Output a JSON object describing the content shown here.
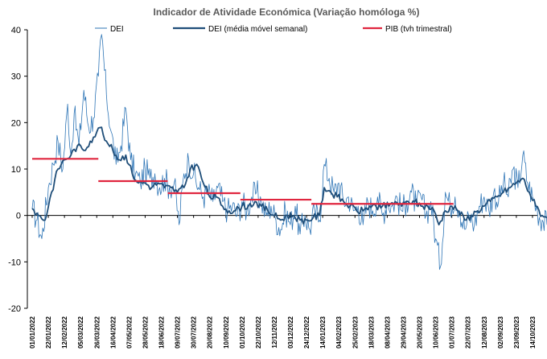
{
  "chart_data": {
    "type": "line",
    "title": "Indicador de Atividade Económica (Variação homóloga %)",
    "xlabel": "",
    "ylabel": "",
    "ylim": [
      -20,
      40
    ],
    "yticks": [
      -20,
      -10,
      0,
      10,
      20,
      30,
      40
    ],
    "grid": false,
    "legend_position": "top",
    "x_tick_labels": [
      "01/01/2022",
      "22/01/2022",
      "12/02/2022",
      "05/03/2022",
      "26/03/2022",
      "16/04/2022",
      "07/05/2022",
      "28/05/2022",
      "18/06/2022",
      "09/07/2022",
      "30/07/2022",
      "20/08/2022",
      "10/09/2022",
      "01/10/2022",
      "22/10/2022",
      "12/11/2022",
      "03/12/2022",
      "24/12/2022",
      "14/01/2023",
      "04/02/2023",
      "25/02/2023",
      "18/03/2023",
      "08/04/2023",
      "29/04/2023",
      "20/05/2023",
      "10/06/2023",
      "01/07/2023",
      "22/07/2023",
      "12/08/2023",
      "02/09/2023",
      "23/09/2023",
      "14/10/2023"
    ],
    "series": [
      {
        "name": "DEI",
        "style": "thin-line",
        "color": "#2E75B6",
        "anchors": [
          [
            0,
            1.5
          ],
          [
            0.3,
            -1
          ],
          [
            0.6,
            -5
          ],
          [
            1,
            6
          ],
          [
            1.3,
            11
          ],
          [
            1.6,
            16
          ],
          [
            1.9,
            10
          ],
          [
            2.2,
            24
          ],
          [
            2.4,
            13
          ],
          [
            2.6,
            22
          ],
          [
            2.9,
            15
          ],
          [
            3.2,
            27
          ],
          [
            3.5,
            19
          ],
          [
            3.8,
            21
          ],
          [
            4.1,
            30
          ],
          [
            4.3,
            39
          ],
          [
            4.6,
            26
          ],
          [
            4.9,
            18
          ],
          [
            5.2,
            11
          ],
          [
            5.5,
            15
          ],
          [
            5.8,
            23
          ],
          [
            6.1,
            12
          ],
          [
            6.4,
            9
          ],
          [
            6.7,
            7
          ],
          [
            7,
            10
          ],
          [
            7.3,
            8
          ],
          [
            7.6,
            9
          ],
          [
            7.9,
            6
          ],
          [
            8.2,
            8
          ],
          [
            8.5,
            6
          ],
          [
            8.8,
            7
          ],
          [
            9.1,
            -2
          ],
          [
            9.4,
            9
          ],
          [
            9.7,
            12
          ],
          [
            10,
            9
          ],
          [
            10.3,
            6
          ],
          [
            10.6,
            4
          ],
          [
            10.9,
            5
          ],
          [
            11.2,
            3
          ],
          [
            11.5,
            6
          ],
          [
            11.8,
            3
          ],
          [
            12.1,
            1
          ],
          [
            12.4,
            2
          ],
          [
            12.7,
            0
          ],
          [
            13,
            3
          ],
          [
            13.3,
            1
          ],
          [
            13.6,
            4
          ],
          [
            13.9,
            5
          ],
          [
            14.2,
            3
          ],
          [
            14.5,
            0
          ],
          [
            14.8,
            2
          ],
          [
            15.1,
            -1
          ],
          [
            15.4,
            -3
          ],
          [
            15.7,
            1
          ],
          [
            16,
            -2
          ],
          [
            16.3,
            2
          ],
          [
            16.6,
            -4
          ],
          [
            16.9,
            0
          ],
          [
            17.2,
            -3
          ],
          [
            17.5,
            1
          ],
          [
            17.8,
            -1
          ],
          [
            18.1,
            11
          ],
          [
            18.4,
            8
          ],
          [
            18.7,
            5
          ],
          [
            19,
            7
          ],
          [
            19.3,
            3
          ],
          [
            19.6,
            4
          ],
          [
            19.9,
            1
          ],
          [
            20.2,
            2
          ],
          [
            20.5,
            -2
          ],
          [
            20.8,
            3
          ],
          [
            21.1,
            1
          ],
          [
            21.4,
            4
          ],
          [
            21.7,
            0
          ],
          [
            22,
            3
          ],
          [
            22.3,
            2
          ],
          [
            22.6,
            4
          ],
          [
            22.9,
            1
          ],
          [
            23.2,
            3
          ],
          [
            23.5,
            5
          ],
          [
            23.8,
            2
          ],
          [
            24.1,
            4
          ],
          [
            24.4,
            0
          ],
          [
            24.7,
            3
          ],
          [
            25,
            -5
          ],
          [
            25.3,
            -11
          ],
          [
            25.6,
            5
          ],
          [
            25.9,
            2
          ],
          [
            26.2,
            4
          ],
          [
            26.5,
            1
          ],
          [
            26.8,
            -3
          ],
          [
            27.1,
            0
          ],
          [
            27.4,
            -2
          ],
          [
            27.7,
            2
          ],
          [
            28,
            4
          ],
          [
            28.3,
            1
          ],
          [
            28.6,
            5
          ],
          [
            28.9,
            3
          ],
          [
            29.2,
            7
          ],
          [
            29.5,
            4
          ],
          [
            29.8,
            10
          ],
          [
            30.1,
            6
          ],
          [
            30.4,
            13
          ],
          [
            30.7,
            7
          ],
          [
            31,
            4
          ],
          [
            31.3,
            1
          ],
          [
            31.6,
            -1
          ],
          [
            31.9,
            -2
          ]
        ]
      },
      {
        "name": "DEI (média móvel semanal)",
        "style": "thick-line",
        "color": "#1F4E79",
        "anchors": [
          [
            0,
            1.5
          ],
          [
            0.4,
            0
          ],
          [
            0.8,
            -1
          ],
          [
            1.2,
            5
          ],
          [
            1.6,
            10
          ],
          [
            2,
            12
          ],
          [
            2.4,
            13
          ],
          [
            2.8,
            15
          ],
          [
            3.2,
            14
          ],
          [
            3.6,
            16
          ],
          [
            4,
            18
          ],
          [
            4.3,
            19
          ],
          [
            4.6,
            16
          ],
          [
            5,
            14
          ],
          [
            5.4,
            12
          ],
          [
            5.8,
            13
          ],
          [
            6.2,
            9
          ],
          [
            6.6,
            7
          ],
          [
            7,
            7
          ],
          [
            7.4,
            6
          ],
          [
            7.8,
            7
          ],
          [
            8.2,
            6
          ],
          [
            8.6,
            6
          ],
          [
            9,
            5
          ],
          [
            9.4,
            6
          ],
          [
            9.8,
            10
          ],
          [
            10.2,
            11
          ],
          [
            10.6,
            7
          ],
          [
            11,
            4
          ],
          [
            11.4,
            4
          ],
          [
            11.8,
            2
          ],
          [
            12.2,
            1
          ],
          [
            12.6,
            1
          ],
          [
            13,
            2
          ],
          [
            13.4,
            2
          ],
          [
            13.8,
            3
          ],
          [
            14.2,
            2
          ],
          [
            14.6,
            1
          ],
          [
            15,
            0
          ],
          [
            15.4,
            -1
          ],
          [
            15.8,
            0
          ],
          [
            16.2,
            0
          ],
          [
            16.6,
            -1
          ],
          [
            17,
            -1
          ],
          [
            17.4,
            -0.5
          ],
          [
            17.8,
            0
          ],
          [
            18.1,
            6
          ],
          [
            18.5,
            5
          ],
          [
            18.9,
            4
          ],
          [
            19.3,
            3
          ],
          [
            19.7,
            2
          ],
          [
            20.1,
            1
          ],
          [
            20.5,
            1
          ],
          [
            20.9,
            2
          ],
          [
            21.3,
            2
          ],
          [
            21.7,
            2
          ],
          [
            22.1,
            2
          ],
          [
            22.5,
            3
          ],
          [
            22.9,
            2
          ],
          [
            23.3,
            3
          ],
          [
            23.7,
            3
          ],
          [
            24.1,
            2
          ],
          [
            24.5,
            2
          ],
          [
            24.9,
            1
          ],
          [
            25.2,
            -2
          ],
          [
            25.6,
            1
          ],
          [
            26,
            2
          ],
          [
            26.4,
            1
          ],
          [
            26.8,
            -1
          ],
          [
            27.2,
            0
          ],
          [
            27.6,
            1
          ],
          [
            28,
            2
          ],
          [
            28.4,
            3
          ],
          [
            28.8,
            4
          ],
          [
            29.2,
            5
          ],
          [
            29.6,
            6
          ],
          [
            30,
            7
          ],
          [
            30.4,
            8
          ],
          [
            30.8,
            5
          ],
          [
            31.2,
            2
          ],
          [
            31.6,
            0
          ],
          [
            31.9,
            -0.5
          ]
        ]
      },
      {
        "name": "PIB (tvh trimestral)",
        "style": "step",
        "color": "#E0263F",
        "segments": [
          {
            "x0": 0,
            "x1": 4.1,
            "y": 12.2
          },
          {
            "x0": 4.1,
            "x1": 8.4,
            "y": 7.4
          },
          {
            "x0": 8.4,
            "x1": 12.9,
            "y": 4.8
          },
          {
            "x0": 12.9,
            "x1": 17.3,
            "y": 3.4
          },
          {
            "x0": 17.3,
            "x1": 26.1,
            "y": 2.5
          }
        ]
      }
    ]
  }
}
